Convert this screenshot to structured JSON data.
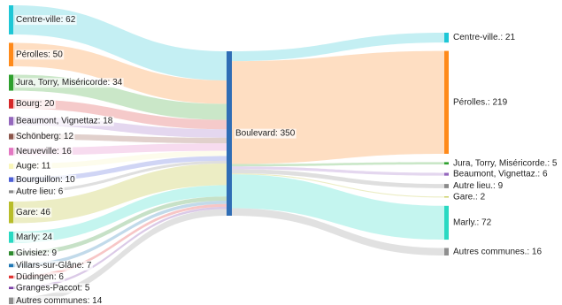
{
  "chart_data": {
    "type": "sankey",
    "hub": {
      "label": "Boulevard: 350",
      "value": 350,
      "color": "#2f6db5"
    },
    "sources": [
      {
        "label": "Centre-ville: 62",
        "value": 62,
        "color": "#1ec7d6",
        "link_color": "#93e2ea"
      },
      {
        "label": "Pérolles: 50",
        "value": 50,
        "color": "#ff8a1a",
        "link_color": "#fdc28f"
      },
      {
        "label": "Jura, Torry, Miséricorde: 34",
        "value": 34,
        "color": "#2ea02e",
        "link_color": "#9ed49b"
      },
      {
        "label": "Bourg: 20",
        "value": 20,
        "color": "#d62728",
        "link_color": "#ec9f9f"
      },
      {
        "label": "Beaumont, Vignettaz: 18",
        "value": 18,
        "color": "#9467bd",
        "link_color": "#cdb6e2"
      },
      {
        "label": "Schönberg: 12",
        "value": 12,
        "color": "#8c564b",
        "link_color": "#c9a9a3"
      },
      {
        "label": "Neuveville: 16",
        "value": 16,
        "color": "#e377c2",
        "link_color": "#f1bde1"
      },
      {
        "label": "Auge: 11",
        "value": 11,
        "color": "#f9f6b8",
        "link_color": "#fbfadc"
      },
      {
        "label": "Bourguillon: 10",
        "value": 10,
        "color": "#4d5fd6",
        "link_color": "#a9b2ec"
      },
      {
        "label": "Autre lieu: 6",
        "value": 6,
        "color": "#8a8a8a",
        "link_color": "#c4c4c4"
      },
      {
        "label": "Gare: 46",
        "value": 46,
        "color": "#b8bd2a",
        "link_color": "#dcdf93"
      },
      {
        "label": "Marly: 24",
        "value": 24,
        "color": "#29d9c2",
        "link_color": "#93ece1"
      },
      {
        "label": "Givisiez: 9",
        "value": 9,
        "color": "#2e8b2e",
        "link_color": "#99c999"
      },
      {
        "label": "Villars-sur-Glâne: 7",
        "value": 7,
        "color": "#1f77b4",
        "link_color": "#8fbbd9"
      },
      {
        "label": "Düdingen: 6",
        "value": 6,
        "color": "#e0302f",
        "link_color": "#f09898"
      },
      {
        "label": "Granges-Paccot: 5",
        "value": 5,
        "color": "#7b3fa6",
        "link_color": "#bd9fd3"
      },
      {
        "label": "Autres communes: 14",
        "value": 14,
        "color": "#8f8f8f",
        "link_color": "#c8c8c8"
      }
    ],
    "targets": [
      {
        "label": "Centre-ville.: 21",
        "value": 21,
        "color": "#1ec7d6",
        "link_color": "#93e2ea"
      },
      {
        "label": "Pérolles.: 219",
        "value": 219,
        "color": "#ff8a1a",
        "link_color": "#fdc28f"
      },
      {
        "label": "Jura, Torry, Miséricorde.: 5",
        "value": 5,
        "color": "#2ea02e",
        "link_color": "#9ed49b"
      },
      {
        "label": "Beaumont, Vignettaz.: 6",
        "value": 6,
        "color": "#9467bd",
        "link_color": "#cdb6e2"
      },
      {
        "label": "Autre lieu.: 9",
        "value": 9,
        "color": "#8a8a8a",
        "link_color": "#c4c4c4"
      },
      {
        "label": "Gare.: 2",
        "value": 2,
        "color": "#b8bd2a",
        "link_color": "#dcdf93"
      },
      {
        "label": "Marly.: 72",
        "value": 72,
        "color": "#29d9c2",
        "link_color": "#93ece1"
      },
      {
        "label": "Autres communes.: 16",
        "value": 16,
        "color": "#8f8f8f",
        "link_color": "#c8c8c8"
      }
    ]
  }
}
